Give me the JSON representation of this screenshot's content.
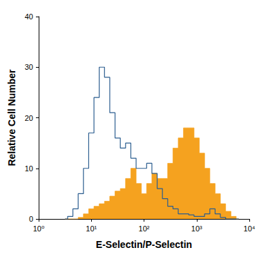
{
  "chart_data": {
    "type": "line",
    "x_label": "E-Selectin/P-Selectin",
    "y_label": "Relative Cell Number",
    "log": "x",
    "grid": false,
    "xlim": [
      1,
      10000
    ],
    "xticks": [
      {
        "value": 1,
        "label": "10⁰"
      },
      {
        "value": 10,
        "label": "10¹"
      },
      {
        "value": 100,
        "label": "10²"
      },
      {
        "value": 1000,
        "label": "10³"
      },
      {
        "value": 10000,
        "label": "10⁴"
      }
    ],
    "ylim": [
      0,
      40
    ],
    "yticks": [
      0,
      10,
      20,
      30,
      40
    ],
    "x": [
      3.16,
      3.98,
      5.01,
      6.31,
      7.94,
      10,
      12.59,
      15.85,
      19.95,
      25.12,
      31.62,
      39.81,
      50.12,
      63.1,
      79.43,
      100,
      125.9,
      158.5,
      199.5,
      251.2,
      316.2,
      398.1,
      501.2,
      631,
      794.3,
      1000,
      1259,
      1585,
      1995,
      2512,
      3162,
      3981,
      5012,
      6310
    ],
    "series": [
      {
        "type": "area",
        "line_style": "step",
        "color": "#f5a21f",
        "values": [
          0,
          0,
          0,
          0.3,
          1,
          2,
          2.5,
          3,
          3.5,
          4.5,
          5.5,
          6,
          8,
          10,
          7,
          5,
          7,
          9,
          8,
          8,
          11,
          14,
          16,
          18,
          18,
          16,
          13,
          10,
          7,
          5,
          3,
          1.5,
          0.5,
          0
        ]
      },
      {
        "type": "line",
        "line_style": "step",
        "color": "#2b5d8f",
        "values": [
          0,
          0.5,
          2,
          5,
          10,
          17,
          24,
          30,
          28,
          21,
          16,
          14,
          15,
          12,
          10,
          10,
          11,
          9,
          6,
          4,
          2.5,
          2,
          1,
          1,
          0.8,
          0.5,
          0.5,
          1,
          2,
          1,
          0.3,
          0,
          0,
          0
        ]
      }
    ]
  }
}
